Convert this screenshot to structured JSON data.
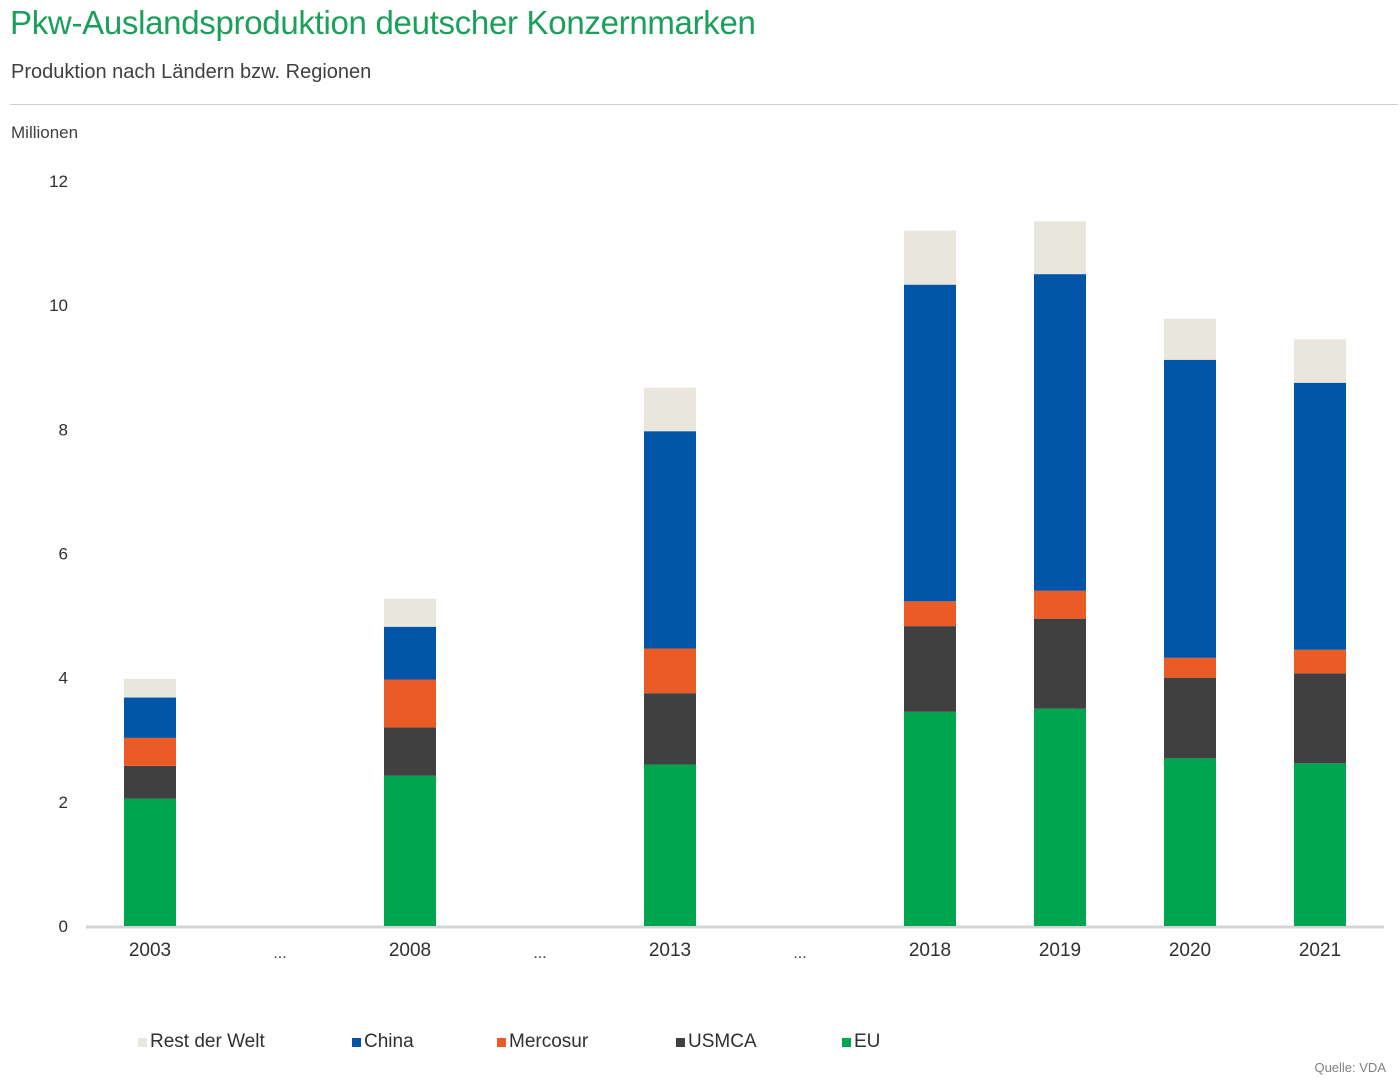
{
  "header": {
    "title": "Pkw-Auslandsproduktion deutscher Konzernmarken",
    "subtitle": "Produktion nach Ländern bzw. Regionen"
  },
  "chart_data": {
    "type": "bar",
    "stacked": true,
    "unit_label": "Millionen",
    "categories": [
      "2003",
      "2008",
      "2013",
      "2018",
      "2019",
      "2020",
      "2021"
    ],
    "gap_marker": "...",
    "ylim": [
      0,
      12
    ],
    "yticks": [
      "0",
      "2",
      "4",
      "6",
      "8",
      "10",
      "12"
    ],
    "grid": false,
    "legend_position": "bottom",
    "series": [
      {
        "name": "EU",
        "color": "#00a550",
        "values": [
          2.05,
          2.42,
          2.6,
          3.45,
          3.5,
          2.7,
          2.62
        ]
      },
      {
        "name": "USMCA",
        "color": "#404040",
        "values": [
          0.53,
          0.78,
          1.15,
          1.38,
          1.45,
          1.3,
          1.45
        ]
      },
      {
        "name": "Mercosur",
        "color": "#ea5b25",
        "values": [
          0.45,
          0.77,
          0.72,
          0.4,
          0.45,
          0.32,
          0.38
        ]
      },
      {
        "name": "China",
        "color": "#0055a8",
        "values": [
          0.65,
          0.85,
          3.5,
          5.1,
          5.1,
          4.8,
          4.3
        ]
      },
      {
        "name": "Rest der Welt",
        "color": "#e8e6dd",
        "values": [
          0.3,
          0.45,
          0.7,
          0.87,
          0.85,
          0.66,
          0.7
        ]
      }
    ],
    "legend_order": [
      "Rest der Welt",
      "China",
      "Mercosur",
      "USMCA",
      "EU"
    ]
  },
  "footer": {
    "source": "Quelle: VDA"
  }
}
